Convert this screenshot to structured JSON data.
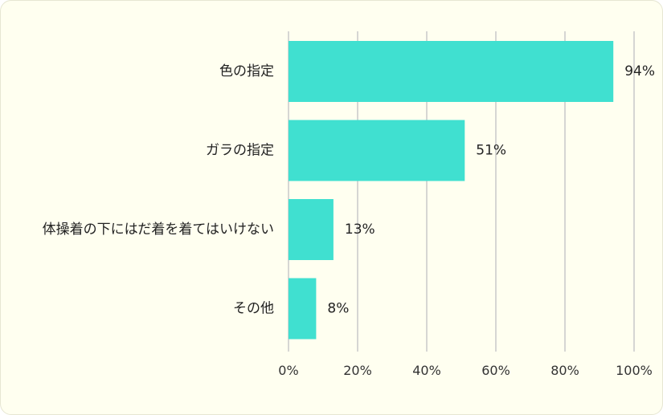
{
  "chart_data": {
    "type": "bar",
    "orientation": "horizontal",
    "categories": [
      "色の指定",
      "ガラの指定",
      "体操着の下にはだ着を着てはいけない",
      "その他"
    ],
    "values": [
      94,
      51,
      13,
      8
    ],
    "data_labels": [
      "94%",
      "51%",
      "13%",
      "8%"
    ],
    "xlim": [
      0,
      100
    ],
    "x_ticks": [
      0,
      20,
      40,
      60,
      80,
      100
    ],
    "x_tick_labels": [
      "0%",
      "20%",
      "40%",
      "60%",
      "80%",
      "100%"
    ],
    "grid": true,
    "legend": "none",
    "bar_color": "#40e0d0",
    "grid_color": "#c9c9c9",
    "background_color": "#fffff0"
  }
}
